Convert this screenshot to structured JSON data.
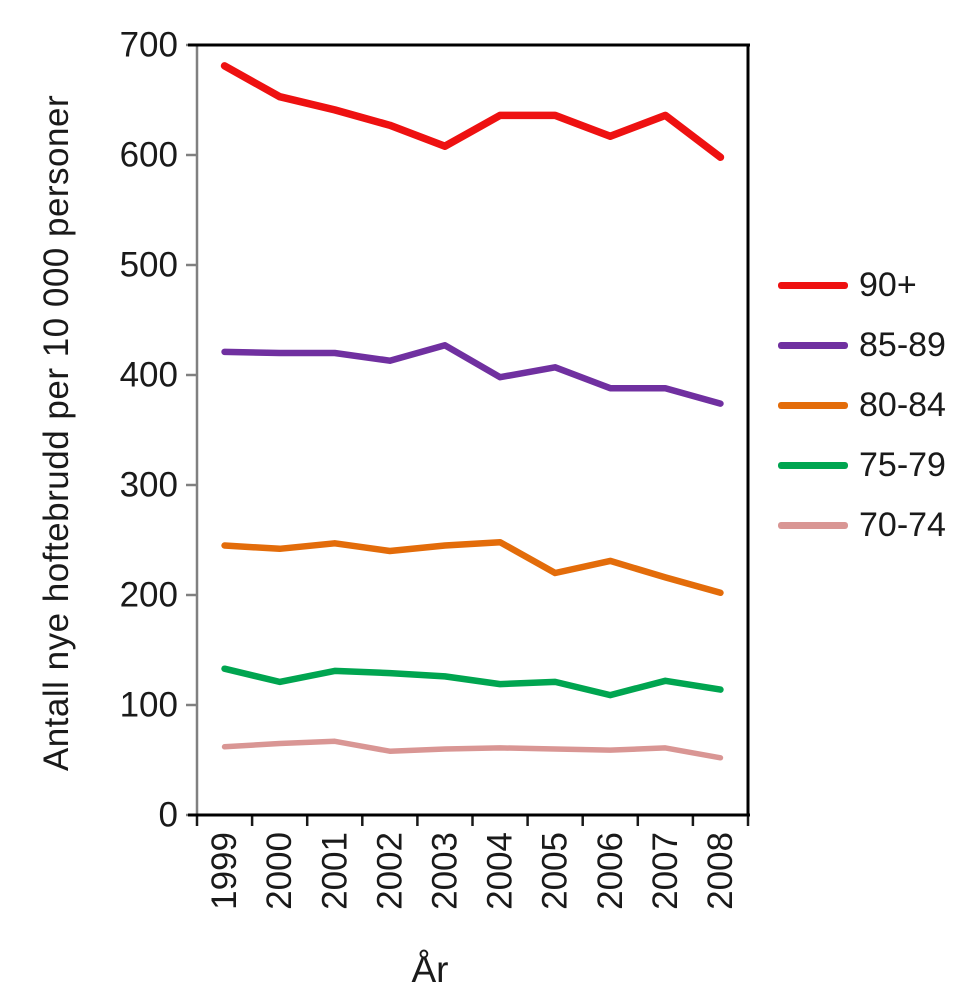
{
  "chart_data": {
    "type": "line",
    "title": "",
    "xlabel": "År",
    "ylabel": "Antall nye hoftebrudd per 10 000 personer",
    "categories": [
      "1999",
      "2000",
      "2001",
      "2002",
      "2003",
      "2004",
      "2005",
      "2006",
      "2007",
      "2008"
    ],
    "series": [
      {
        "name": "90+",
        "color": "#ee1111",
        "width": 7.5,
        "values": [
          681,
          653,
          641,
          627,
          608,
          636,
          636,
          617,
          636,
          598
        ]
      },
      {
        "name": "85-89",
        "color": "#7030a0",
        "width": 6.5,
        "values": [
          421,
          420,
          420,
          413,
          427,
          398,
          407,
          388,
          388,
          374
        ]
      },
      {
        "name": "80-84",
        "color": "#e36c0a",
        "width": 6.5,
        "values": [
          245,
          242,
          247,
          240,
          245,
          248,
          220,
          231,
          216,
          202
        ]
      },
      {
        "name": "75-79",
        "color": "#00a550",
        "width": 6.5,
        "values": [
          133,
          121,
          131,
          129,
          126,
          119,
          121,
          109,
          122,
          114
        ]
      },
      {
        "name": "70-74",
        "color": "#d99694",
        "width": 5.5,
        "values": [
          62,
          65,
          67,
          58,
          60,
          61,
          60,
          59,
          61,
          52
        ]
      }
    ],
    "ylim": [
      0,
      700
    ],
    "ytick_step": 100,
    "yticks": [
      "0",
      "100",
      "200",
      "300",
      "400",
      "500",
      "600",
      "700"
    ],
    "grid": "off",
    "legend_position": "right",
    "axis_color_value_axis": "#808080",
    "axis_color_category_axis": "#1a1a1a"
  }
}
